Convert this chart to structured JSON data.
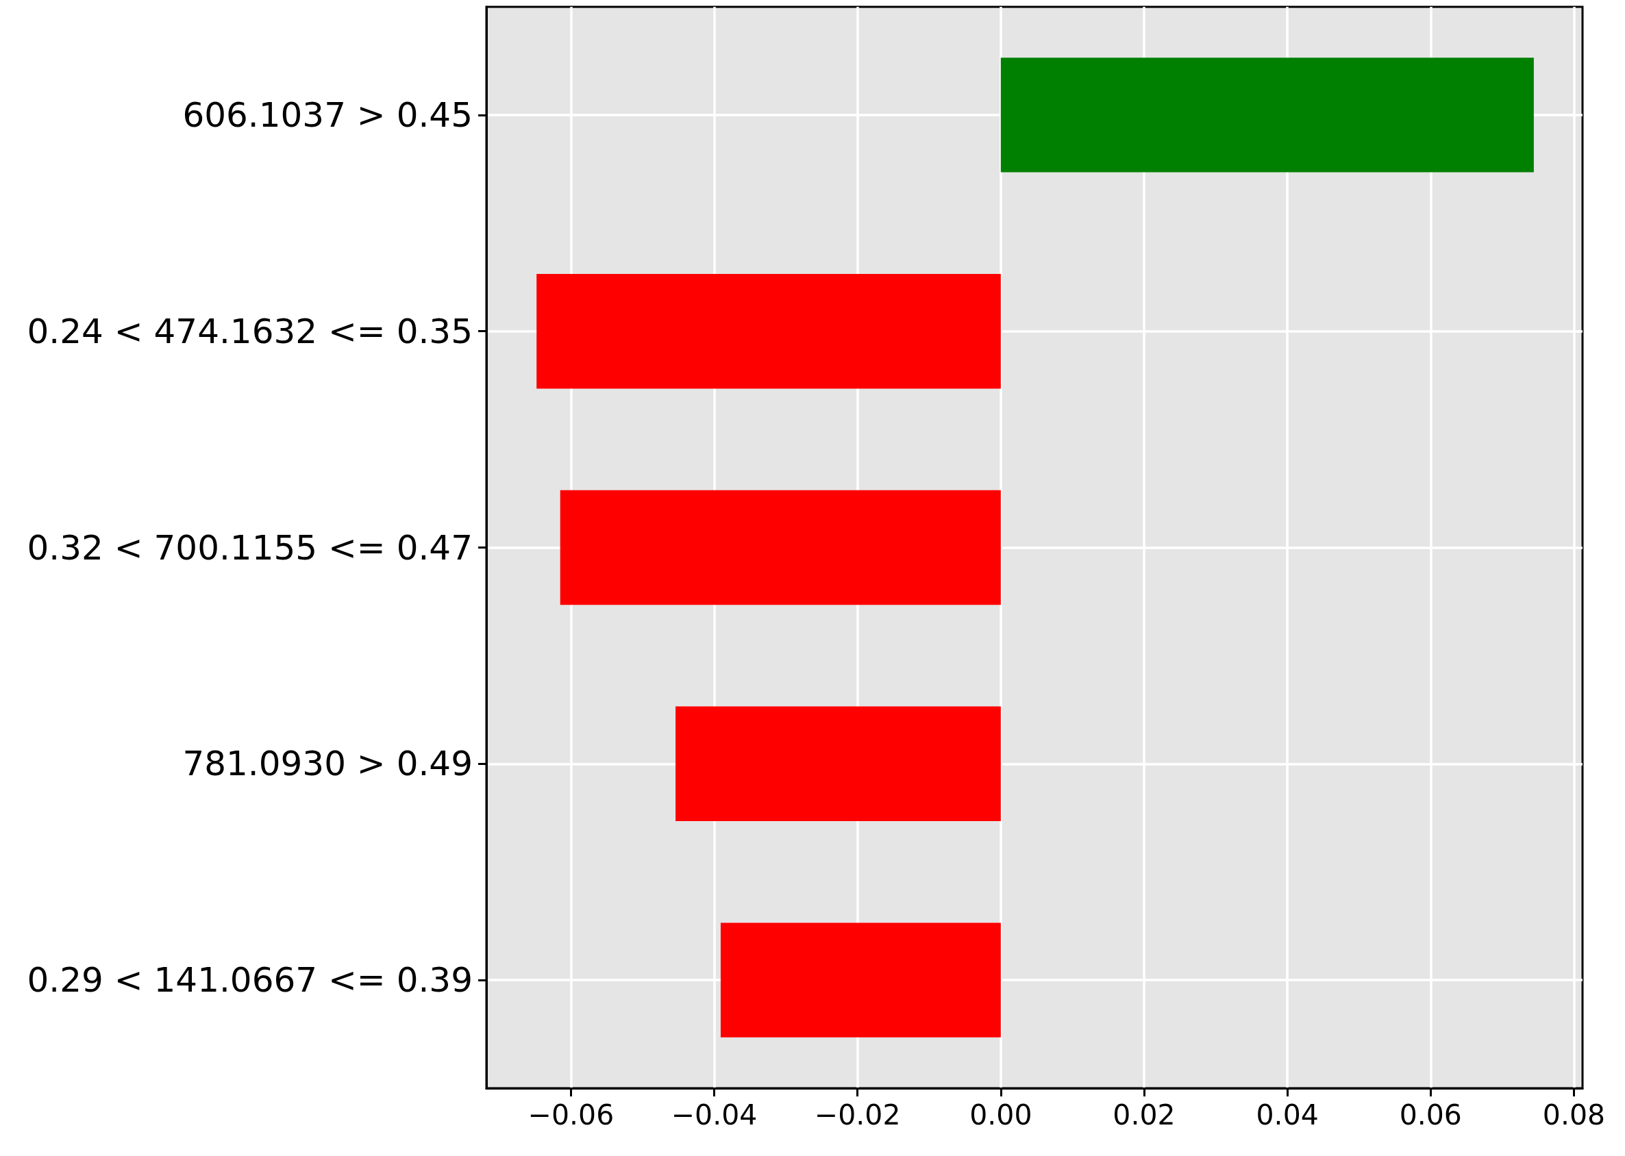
{
  "chart_data": {
    "type": "bar",
    "orientation": "horizontal",
    "categories": [
      "606.1037 > 0.45",
      "0.24 < 474.1632 <= 0.35",
      "0.32 < 700.1155 <= 0.47",
      "781.0930 > 0.49",
      "0.29 < 141.0667 <= 0.39"
    ],
    "values": [
      0.0744,
      -0.0648,
      -0.0615,
      -0.0454,
      -0.0391
    ],
    "colors": [
      "#008000",
      "#ff0000",
      "#ff0000",
      "#ff0000",
      "#ff0000"
    ],
    "xlim": [
      -0.0718,
      0.0812
    ],
    "xticks": [
      {
        "value": -0.06,
        "label": "−0.06"
      },
      {
        "value": -0.04,
        "label": "−0.04"
      },
      {
        "value": -0.02,
        "label": "−0.02"
      },
      {
        "value": 0,
        "label": "0.00"
      },
      0.02,
      0.04,
      0.06,
      0.08
    ],
    "grid": true
  }
}
